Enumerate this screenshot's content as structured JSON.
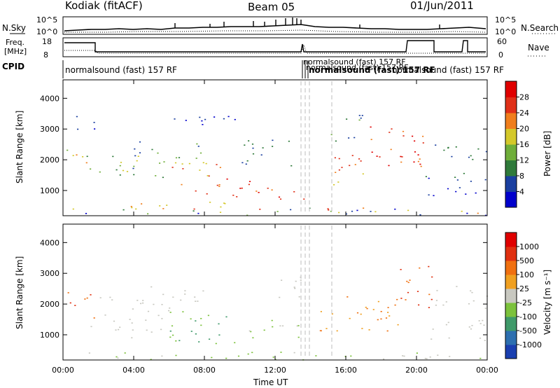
{
  "header": {
    "station": "Kodiak (fitACF)",
    "beam": "Beam 05",
    "date": "01/Jun/2011"
  },
  "top_panels": {
    "nsky_label": "N.Sky",
    "nsearch_label": "N.Search",
    "nsky_ticks": [
      "10^5",
      "10^0"
    ],
    "nsearch_ticks": [
      "10^5",
      "10^0"
    ],
    "freq_label_1": "Freq.",
    "freq_label_2": "[MHz]",
    "freq_ticks": [
      "18",
      "8"
    ],
    "nave_ticks": [
      "60",
      "0"
    ],
    "nave_label": "Nave",
    "cpid_label": "CPID",
    "cpid_text": "normalsound (fast) 157 RF",
    "cpid_overlap_text": "normalsound (fast) 157 RF"
  },
  "chart_data": [
    {
      "type": "heatmap",
      "name": "power",
      "ylabel": "Slant Range [km]",
      "xlabel": "",
      "ylim": [
        180,
        4600
      ],
      "yticks": [
        "1000",
        "2000",
        "3000",
        "4000"
      ],
      "xticks": [],
      "colorbar": {
        "label": "Power [dB]",
        "ticks": [
          "28",
          "24",
          "20",
          "16",
          "12",
          "8",
          "4"
        ],
        "colors": [
          "#0000cc",
          "#1a3fa0",
          "#2f7a3a",
          "#6fae3a",
          "#d4c82a",
          "#f07e1c",
          "#e03018",
          "#e00000"
        ]
      }
    },
    {
      "type": "heatmap",
      "name": "velocity",
      "ylabel": "Slant Range [km]",
      "xlabel": "Time UT",
      "ylim": [
        180,
        4600
      ],
      "yticks": [
        "1000",
        "2000",
        "3000",
        "4000"
      ],
      "xticks": [
        "00:00",
        "04:00",
        "08:00",
        "12:00",
        "16:00",
        "20:00",
        "00:00"
      ],
      "colorbar": {
        "label": "Velocity [m s⁻¹]",
        "ticks": [
          "1000",
          "500",
          "100",
          "25",
          "-25",
          "-100",
          "-500",
          "-1000"
        ],
        "colors": [
          "#1a3fb0",
          "#2d6fb0",
          "#3f9a6a",
          "#7cc23c",
          "#c8c8c0",
          "#f0a020",
          "#f07010",
          "#e03010",
          "#e00000"
        ]
      }
    }
  ]
}
